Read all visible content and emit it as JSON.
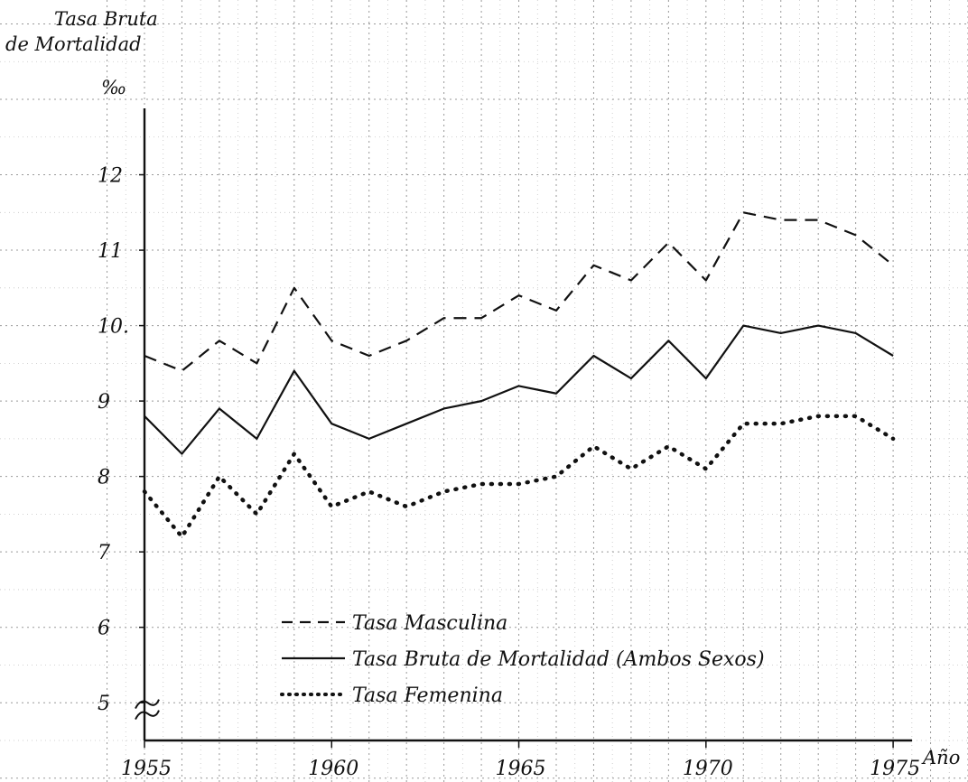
{
  "chart_data": {
    "type": "line",
    "title": "",
    "ylabel_lines": [
      "Tasa Bruta",
      "de Mortalidad",
      "‰"
    ],
    "xlabel": "Año",
    "x": [
      1955,
      1956,
      1957,
      1958,
      1959,
      1960,
      1961,
      1962,
      1963,
      1964,
      1965,
      1966,
      1967,
      1968,
      1969,
      1970,
      1971,
      1972,
      1973,
      1974,
      1975
    ],
    "x_ticks": [
      1955,
      1960,
      1965,
      1970,
      1975
    ],
    "x_tick_labels": [
      "1955",
      "1960",
      "1965",
      "1970",
      "1975"
    ],
    "y_ticks": [
      5,
      6,
      7,
      8,
      9,
      10,
      11,
      12
    ],
    "y_tick_labels": [
      "5",
      "6",
      "7",
      "8",
      "9",
      "10.",
      "11",
      "12"
    ],
    "ylim": [
      4.5,
      13
    ],
    "xlim": [
      1955,
      1977
    ],
    "y_axis_break": true,
    "grid": true,
    "legend_position": "lower-left",
    "series": [
      {
        "name": "Tasa Masculina",
        "style": "dashed",
        "values": [
          9.6,
          9.4,
          9.8,
          9.5,
          10.5,
          9.8,
          9.6,
          9.8,
          10.1,
          10.1,
          10.4,
          10.2,
          10.8,
          10.6,
          11.1,
          10.6,
          11.5,
          11.4,
          11.4,
          11.2,
          10.8
        ]
      },
      {
        "name": "Tasa Bruta de Mortalidad (Ambos Sexos)",
        "style": "solid",
        "values": [
          8.8,
          8.3,
          8.9,
          8.5,
          9.4,
          8.7,
          8.5,
          8.7,
          8.9,
          9.0,
          9.2,
          9.1,
          9.6,
          9.3,
          9.8,
          9.3,
          10.0,
          9.9,
          10.0,
          9.9,
          9.6
        ]
      },
      {
        "name": "Tasa Femenina",
        "style": "dotted",
        "values": [
          7.8,
          7.2,
          8.0,
          7.5,
          8.3,
          7.6,
          7.8,
          7.6,
          7.8,
          7.9,
          7.9,
          8.0,
          8.4,
          8.1,
          8.4,
          8.1,
          8.7,
          8.7,
          8.8,
          8.8,
          8.5
        ]
      }
    ]
  },
  "colors": {
    "ink": "#111111",
    "grid": "#999999",
    "paper": "#ffffff"
  }
}
